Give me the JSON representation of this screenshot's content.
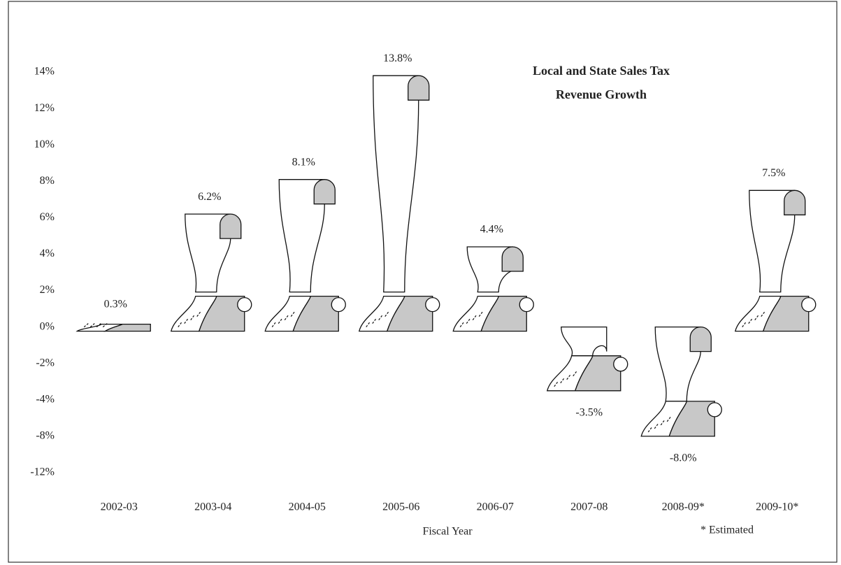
{
  "chart_data": {
    "type": "pictograph",
    "title_lines": [
      "Local and State Sales Tax",
      "Revenue Growth"
    ],
    "x_label": "Fiscal Year",
    "note": "* Estimated",
    "categories": [
      "2002-03",
      "2003-04",
      "2004-05",
      "2005-06",
      "2006-07",
      "2007-08",
      "2008-09*",
      "2009-10*"
    ],
    "values": [
      0.3,
      6.2,
      8.1,
      13.8,
      4.4,
      -3.5,
      -8.0,
      7.5
    ],
    "value_labels": [
      "0.3%",
      "6.2%",
      "8.1%",
      "13.8%",
      "4.4%",
      "-3.5%",
      "-8.0%",
      "7.5%"
    ],
    "color": "#c8c8c8",
    "yticks": [
      {
        "value": 14,
        "label": "14%"
      },
      {
        "value": 12,
        "label": "12%"
      },
      {
        "value": 10,
        "label": "10%"
      },
      {
        "value": 8,
        "label": "8%"
      },
      {
        "value": 6,
        "label": "6%"
      },
      {
        "value": 4,
        "label": "4%"
      },
      {
        "value": 2,
        "label": "2%"
      },
      {
        "value": 0,
        "label": "0%"
      },
      {
        "value": -2,
        "label": "-2%"
      },
      {
        "value": -4,
        "label": "-4%"
      },
      {
        "value": -8,
        "label": "-8%"
      },
      {
        "value": -12,
        "label": "-12%"
      }
    ]
  }
}
